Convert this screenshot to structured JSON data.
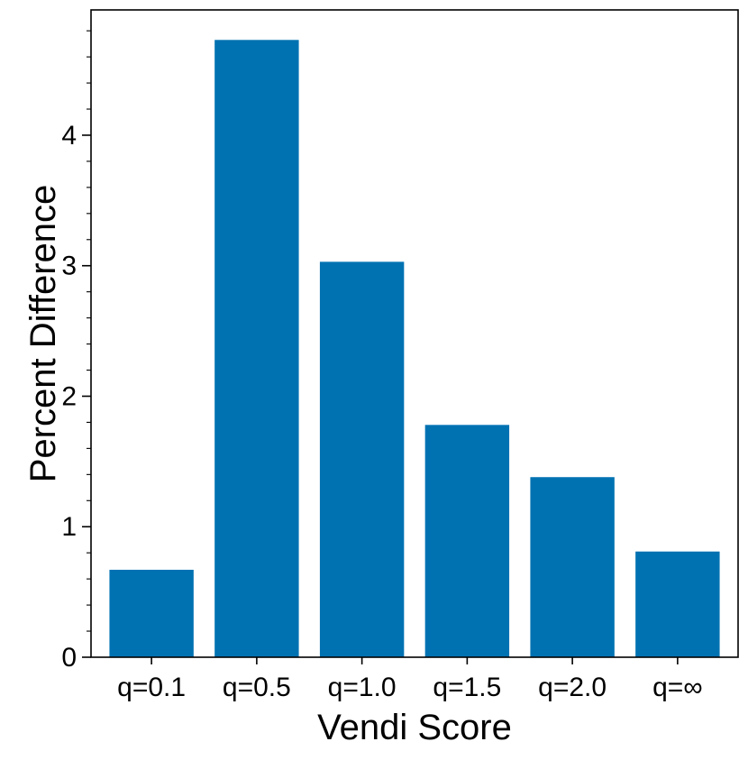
{
  "chart_data": {
    "type": "bar",
    "title": "",
    "xlabel": "Vendi Score",
    "ylabel": "Percent Difference",
    "categories": [
      "q=0.1",
      "q=0.5",
      "q=1.0",
      "q=1.5",
      "q=2.0",
      "q=∞"
    ],
    "values": [
      0.67,
      4.73,
      3.03,
      1.78,
      1.38,
      0.81
    ],
    "ylim": [
      0,
      4.96
    ],
    "yticks": [
      0,
      1,
      2,
      3,
      4
    ],
    "y_minor_step": 0.2,
    "grid": false,
    "bar_color": "#0072B2"
  }
}
